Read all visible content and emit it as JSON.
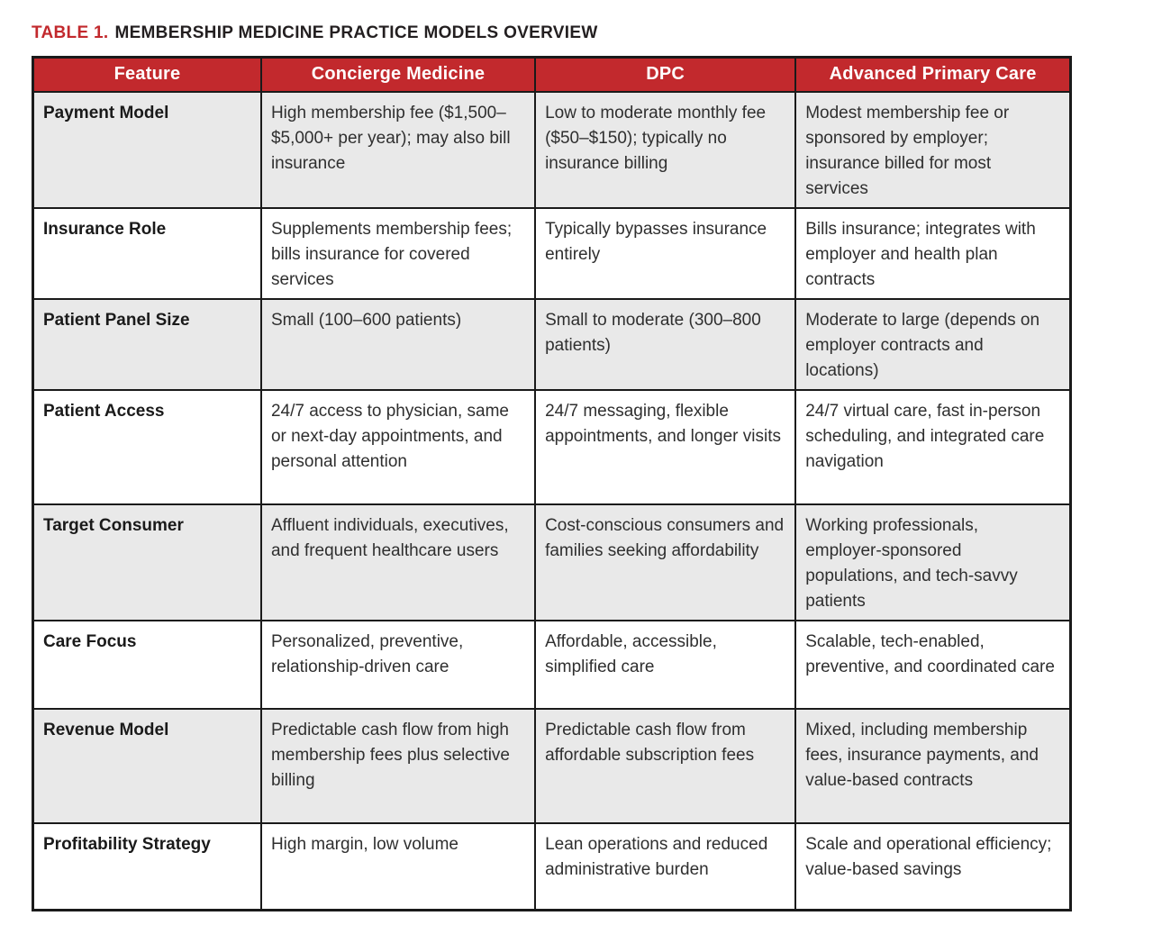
{
  "title": {
    "prefix": "TABLE 1.",
    "text": "MEMBERSHIP MEDICINE PRACTICE MODELS OVERVIEW"
  },
  "colors": {
    "accent_red": "#c2292d",
    "row_alt_gray": "#e9e9e9",
    "border_black": "#1a1a1a",
    "header_text": "#ffffff"
  },
  "table": {
    "headers": [
      "Feature",
      "Concierge Medicine",
      "DPC",
      "Advanced Primary Care"
    ],
    "rows": [
      {
        "feature": "Payment Model",
        "concierge": "High membership fee ($1,500–$5,000+ per year); may also bill insurance",
        "dpc": "Low to moderate monthly fee ($50–$150); typically no insurance billing",
        "apc": "Modest membership fee or sponsored by employer; insurance billed for most services"
      },
      {
        "feature": "Insurance Role",
        "concierge": "Supplements membership fees; bills insurance for covered services",
        "dpc": "Typically bypasses insurance entirely",
        "apc": "Bills insurance; integrates with employer and health plan contracts"
      },
      {
        "feature": "Patient Panel Size",
        "concierge": "Small (100–600 patients)",
        "dpc": "Small to moderate (300–800 patients)",
        "apc": "Moderate to large (depends on employer contracts and locations)"
      },
      {
        "feature": "Patient Access",
        "concierge": "24/7 access to physician, same or next-day appointments, and personal attention",
        "dpc": "24/7 messaging, flexible appointments, and longer visits",
        "apc": "24/7 virtual care, fast in-person scheduling, and integrated care navigation"
      },
      {
        "feature": "Target Consumer",
        "concierge": "Affluent individuals, executives, and frequent healthcare users",
        "dpc": "Cost-conscious consumers and families seeking affordability",
        "apc": "Working professionals, employer-sponsored populations, and tech-savvy patients"
      },
      {
        "feature": "Care Focus",
        "concierge": "Personalized, preventive, relationship-driven care",
        "dpc": "Affordable, accessible, simplified care",
        "apc": "Scalable, tech-enabled, preventive, and coordinated care"
      },
      {
        "feature": "Revenue Model",
        "concierge": "Predictable cash flow from high membership fees plus selective billing",
        "dpc": "Predictable cash flow from affordable subscription fees",
        "apc": "Mixed, including membership fees, insurance payments, and value-based contracts"
      },
      {
        "feature": "Profitability Strategy",
        "concierge": "High margin, low volume",
        "dpc": "Lean operations and reduced administrative burden",
        "apc": "Scale and operational efficiency; value-based savings"
      }
    ]
  }
}
